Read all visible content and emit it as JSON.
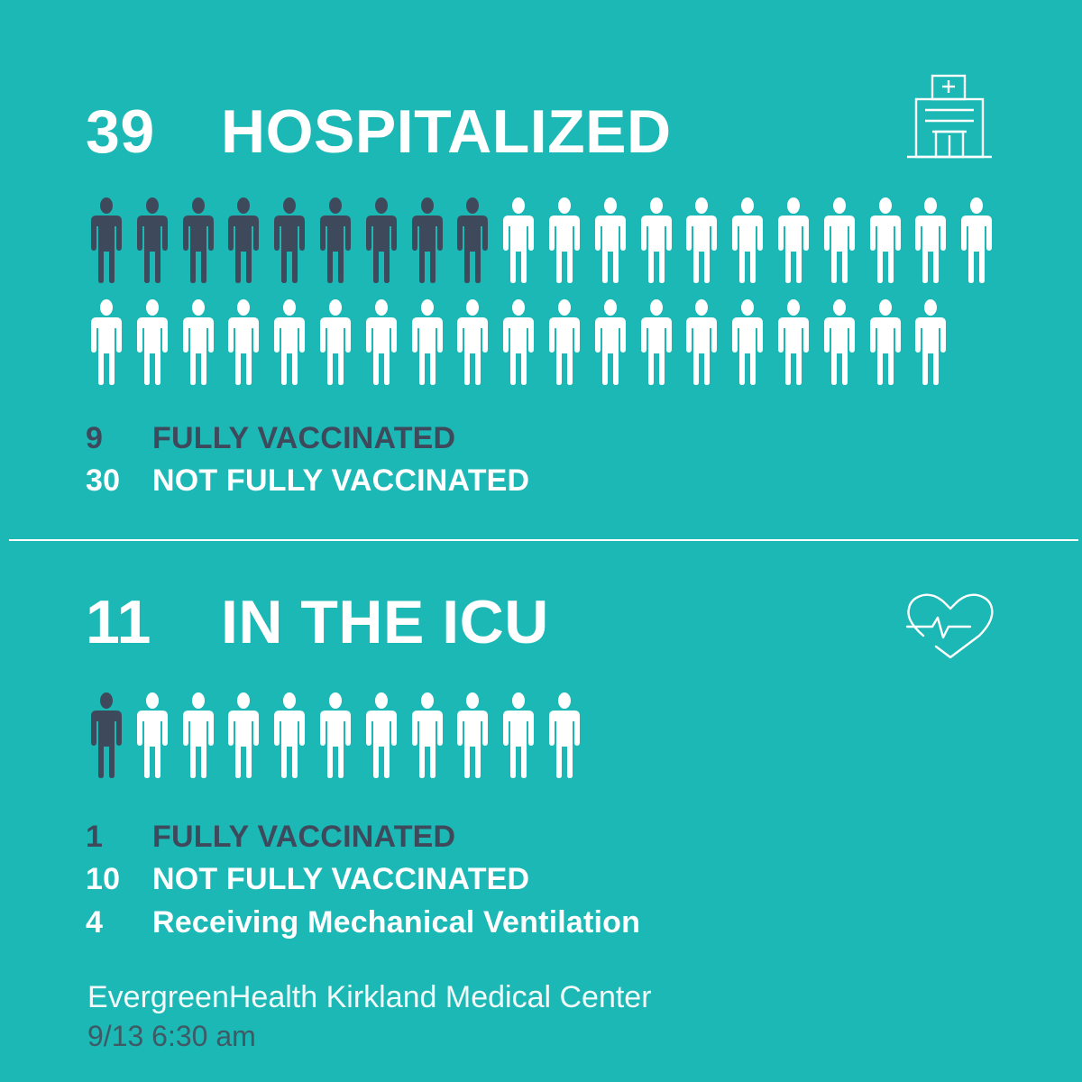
{
  "hospitalized": {
    "count": "39",
    "title": "HOSPITALIZED",
    "fully_vaccinated": 9,
    "total": 39,
    "legend": [
      {
        "value": "9",
        "label": "FULLY VACCINATED"
      },
      {
        "value": "30",
        "label": "NOT FULLY VACCINATED"
      }
    ],
    "icon": "hospital-building-icon"
  },
  "icu": {
    "count": "11",
    "title": "IN THE ICU",
    "fully_vaccinated": 1,
    "total": 11,
    "legend": [
      {
        "value": "1",
        "label": "FULLY VACCINATED"
      },
      {
        "value": "10",
        "label": "NOT FULLY VACCINATED"
      },
      {
        "value": "4",
        "label": "Receiving Mechanical Ventilation"
      }
    ],
    "icon": "heart-pulse-icon"
  },
  "footer": {
    "facility": "EvergreenHealth Kirkland Medical Center",
    "timestamp": "9/13 6:30 am"
  },
  "colors": {
    "background": "#1cb8b5",
    "vaccinated": "#3e4a5c",
    "not_vaccinated": "#ffffff"
  }
}
